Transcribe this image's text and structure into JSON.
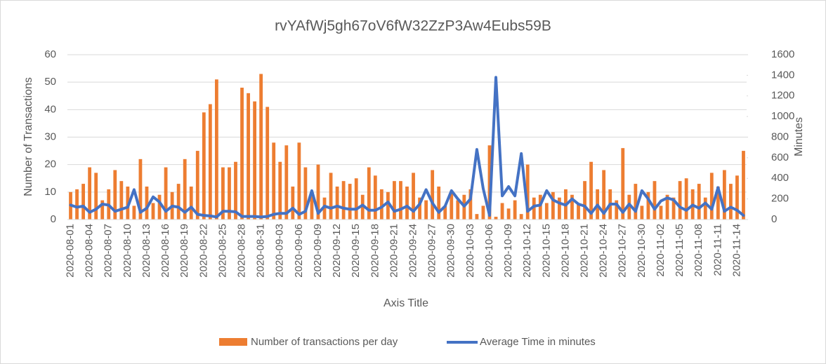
{
  "chart_data": {
    "type": "bar-line",
    "title": "rvYAfWj5gh67oV6fW32ZzP3Aw4Eubs59B",
    "x_label": "Axis Title",
    "y_label": "Number of Transactions",
    "y2_label": "Minutes",
    "categories": [
      "2020-08-01",
      null,
      null,
      "2020-08-04",
      null,
      null,
      "2020-08-07",
      null,
      null,
      "2020-08-10",
      null,
      null,
      "2020-08-13",
      null,
      null,
      "2020-08-16",
      null,
      null,
      "2020-08-19",
      null,
      null,
      "2020-08-22",
      null,
      null,
      "2020-08-25",
      null,
      null,
      "2020-08-28",
      null,
      null,
      "2020-08-31",
      null,
      null,
      "2020-09-03",
      null,
      null,
      "2020-09-06",
      null,
      null,
      "2020-09-09",
      null,
      null,
      "2020-09-12",
      null,
      null,
      "2020-09-15",
      null,
      null,
      "2020-09-18",
      null,
      null,
      "2020-09-21",
      null,
      null,
      "2020-09-24",
      null,
      null,
      "2020-09-27",
      null,
      null,
      "2020-09-30",
      null,
      null,
      "2020-10-03",
      null,
      null,
      "2020-10-06",
      null,
      null,
      "2020-10-09",
      null,
      null,
      "2020-10-12",
      null,
      null,
      "2020-10-15",
      null,
      null,
      "2020-10-18",
      null,
      null,
      "2020-10-21",
      null,
      null,
      "2020-10-24",
      null,
      null,
      "2020-10-27",
      null,
      null,
      "2020-10-30",
      null,
      null,
      "2020-11-02",
      null,
      null,
      "2020-11-05",
      null,
      null,
      "2020-11-08",
      null,
      null,
      "2020-11-11",
      null,
      null,
      "2020-11-14",
      null
    ],
    "series": [
      {
        "name": "Number of transactions per day",
        "kind": "bar",
        "color": "#ed7d31",
        "values": [
          10,
          11,
          13,
          19,
          17,
          7,
          11,
          18,
          14,
          12,
          5,
          22,
          12,
          6,
          9,
          19,
          10,
          13,
          22,
          12,
          25,
          39,
          42,
          51,
          19,
          19,
          21,
          48,
          46,
          43,
          53,
          41,
          28,
          21,
          27,
          12,
          28,
          19,
          10,
          20,
          8,
          17,
          12,
          14,
          13,
          15,
          9,
          19,
          16,
          11,
          10,
          14,
          14,
          12,
          17,
          8,
          7,
          18,
          12,
          5,
          10,
          7,
          9,
          11,
          2,
          5,
          27,
          1,
          6,
          4,
          7,
          2,
          20,
          8,
          9,
          6,
          10,
          8,
          11,
          9,
          6,
          14,
          21,
          11,
          18,
          11,
          7,
          26,
          9,
          13,
          5,
          10,
          14,
          5,
          9,
          8,
          14,
          15,
          11,
          13,
          8,
          17,
          12,
          18,
          13,
          16,
          25
        ]
      },
      {
        "name": "Average Time in minutes",
        "kind": "line",
        "axis": "y2",
        "color": "#4472c4",
        "values": [
          140,
          120,
          130,
          70,
          100,
          150,
          140,
          80,
          100,
          120,
          290,
          70,
          110,
          220,
          170,
          80,
          130,
          120,
          70,
          120,
          50,
          40,
          35,
          25,
          80,
          80,
          75,
          30,
          30,
          30,
          25,
          30,
          50,
          60,
          60,
          110,
          50,
          80,
          280,
          60,
          130,
          110,
          130,
          110,
          100,
          100,
          140,
          90,
          90,
          120,
          170,
          80,
          100,
          130,
          80,
          150,
          290,
          160,
          70,
          130,
          280,
          200,
          130,
          200,
          680,
          300,
          40,
          1380,
          230,
          320,
          230,
          640,
          80,
          130,
          140,
          280,
          190,
          160,
          140,
          200,
          150,
          130,
          60,
          140,
          60,
          150,
          150,
          70,
          150,
          80,
          280,
          200,
          100,
          180,
          210,
          190,
          120,
          90,
          140,
          110,
          160,
          100,
          310,
          80,
          120,
          90,
          40
        ]
      }
    ],
    "ylim": [
      0,
      60
    ],
    "yticks": [
      0,
      10,
      20,
      30,
      40,
      50,
      60
    ],
    "y2lim": [
      0,
      1600
    ],
    "y2ticks": [
      0,
      200,
      400,
      600,
      800,
      1000,
      1200,
      1400,
      1600
    ],
    "grid": true,
    "legend": "bottom"
  }
}
